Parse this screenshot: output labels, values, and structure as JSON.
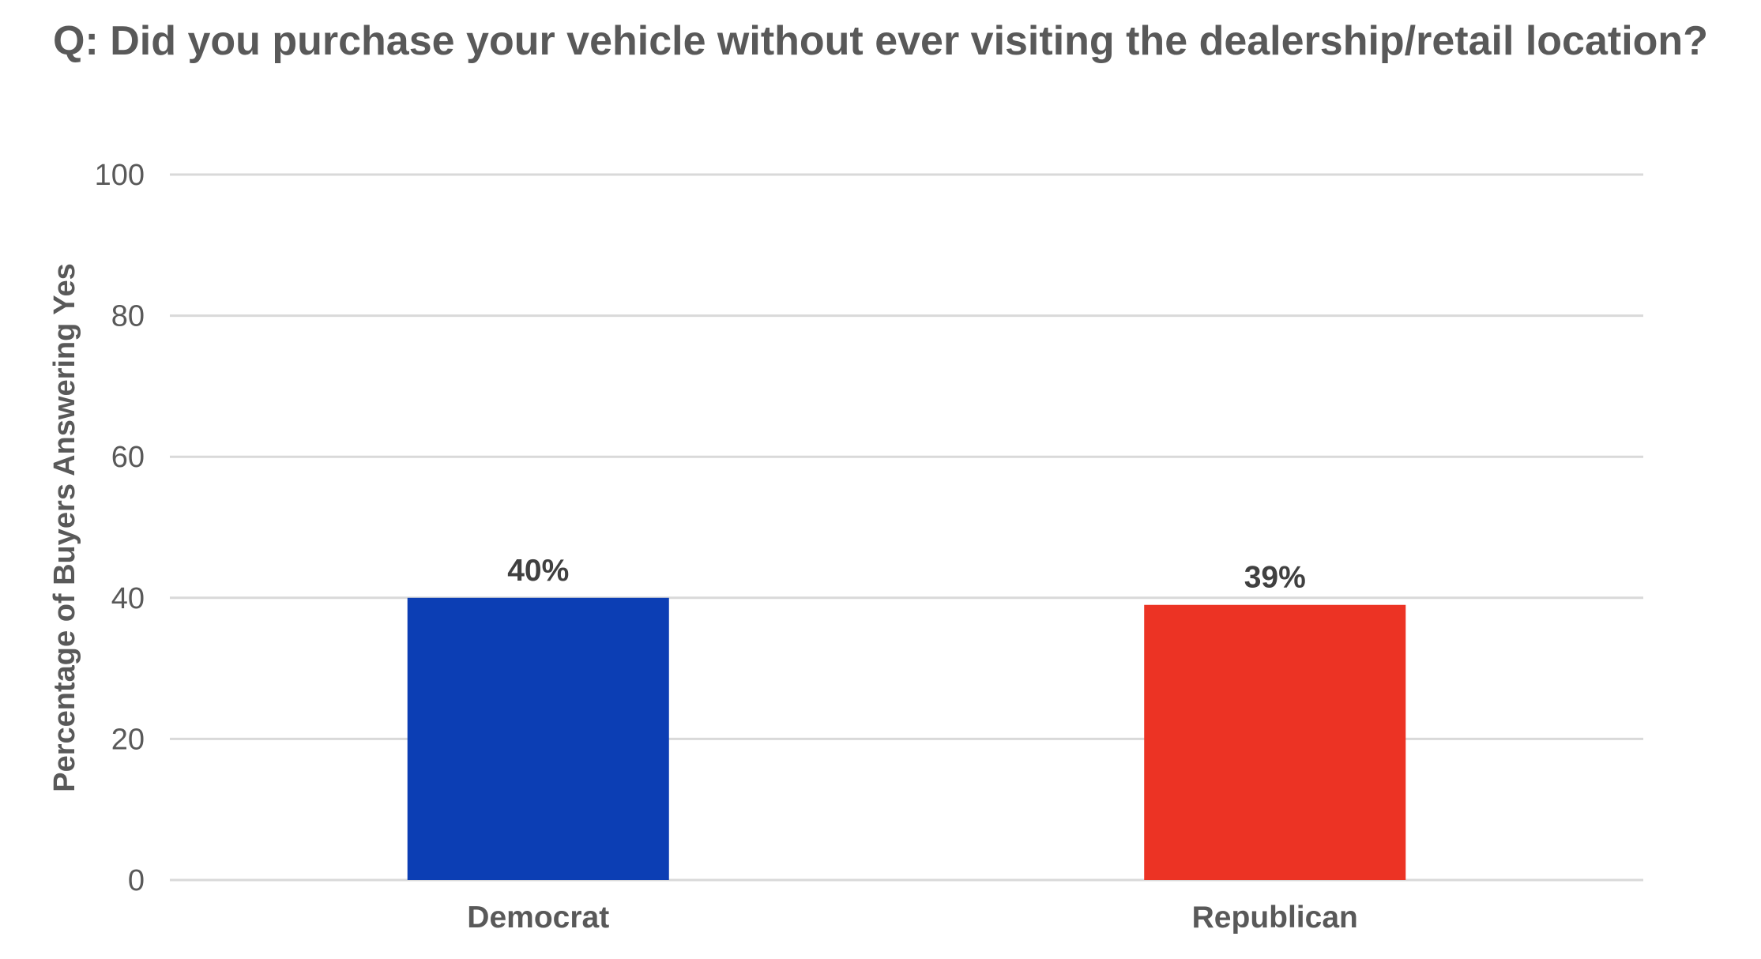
{
  "chart_data": {
    "type": "bar",
    "title": "Q: Did you purchase your vehicle without ever visiting the dealership/retail location?",
    "xlabel": "",
    "ylabel": "Percentage of Buyers Answering Yes",
    "categories": [
      "Democrat",
      "Republican"
    ],
    "values": [
      40,
      39
    ],
    "data_labels": [
      "40%",
      "39%"
    ],
    "bar_colors": [
      "#0c3eb4",
      "#ec3324"
    ],
    "ylim": [
      0,
      100
    ],
    "yticks": [
      0,
      20,
      40,
      60,
      80,
      100
    ],
    "ytick_labels": [
      "0",
      "20",
      "40",
      "60",
      "80",
      "100"
    ],
    "grid": true,
    "legend": "none",
    "colors": {
      "grid": "#d9d9d9",
      "text": "#595959",
      "data_label": "#404040"
    }
  }
}
